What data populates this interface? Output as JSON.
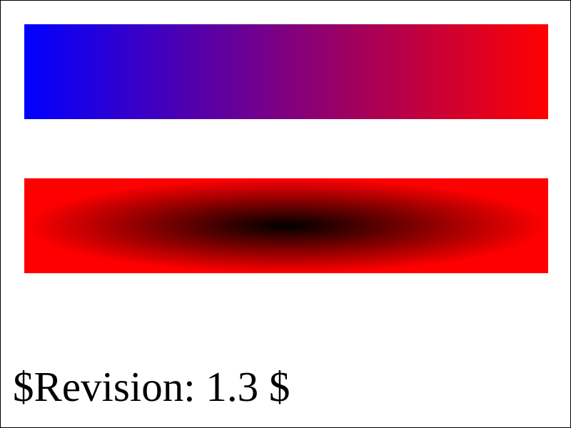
{
  "revision_text": "$Revision: 1.3 $",
  "gradients": {
    "linear": {
      "start_color": "#0000ff",
      "end_color": "#ff0000"
    },
    "radial": {
      "center_color": "#000000",
      "edge_color": "#ff0000"
    }
  },
  "colors": {
    "background": "#ffffff",
    "border": "#000000",
    "text": "#000000"
  }
}
